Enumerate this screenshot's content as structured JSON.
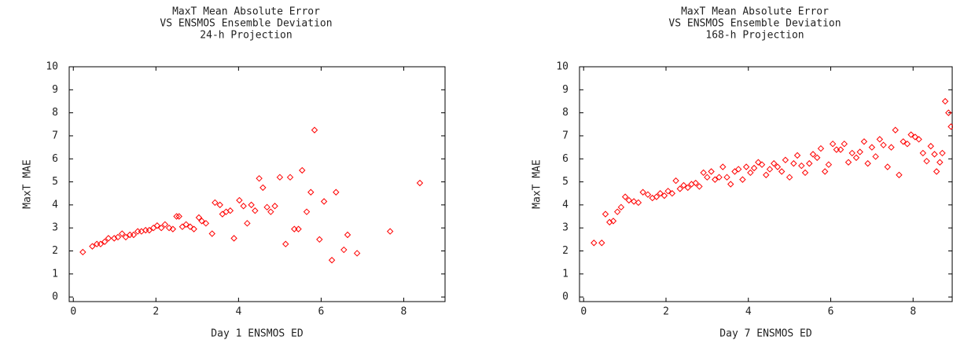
{
  "chart_data": [
    {
      "type": "scatter",
      "title": [
        "MaxT Mean Absolute Error",
        "VS ENSMOS Ensemble Deviation",
        "24-h Projection"
      ],
      "x_label": "Day 1 ENSMOS ED",
      "y_label": "MaxT MAE",
      "xlim": [
        -0.1,
        9
      ],
      "ylim": [
        -0.2,
        10
      ],
      "xticks": [
        0,
        2,
        4,
        6,
        8
      ],
      "yticks": [
        0,
        1,
        2,
        3,
        4,
        5,
        6,
        7,
        8,
        9,
        10
      ],
      "color": "#ff0000",
      "x": [
        0.23,
        0.46,
        0.57,
        0.66,
        0.76,
        0.85,
        0.99,
        1.08,
        1.18,
        1.27,
        1.37,
        1.46,
        1.56,
        1.65,
        1.75,
        1.84,
        1.94,
        2.03,
        2.13,
        2.22,
        2.32,
        2.41,
        2.5,
        2.56,
        2.64,
        2.73,
        2.83,
        2.92,
        3.04,
        3.11,
        3.21,
        3.36,
        3.43,
        3.55,
        3.61,
        3.7,
        3.8,
        3.89,
        4.02,
        4.12,
        4.21,
        4.31,
        4.4,
        4.5,
        4.59,
        4.69,
        4.78,
        4.88,
        5.0,
        5.14,
        5.25,
        5.35,
        5.45,
        5.54,
        5.65,
        5.75,
        5.84,
        5.96,
        6.07,
        6.26,
        6.36,
        6.55,
        6.64,
        6.87,
        7.67,
        8.39
      ],
      "values": [
        1.95,
        2.2,
        2.3,
        2.3,
        2.4,
        2.55,
        2.55,
        2.6,
        2.75,
        2.6,
        2.7,
        2.7,
        2.85,
        2.85,
        2.9,
        2.9,
        3.0,
        3.1,
        3.0,
        3.15,
        3.0,
        2.95,
        3.5,
        3.5,
        3.05,
        3.15,
        3.05,
        2.95,
        3.45,
        3.3,
        3.2,
        2.75,
        4.1,
        4.0,
        3.6,
        3.7,
        3.75,
        2.55,
        4.2,
        3.95,
        3.2,
        4.0,
        3.75,
        5.15,
        4.75,
        3.9,
        3.7,
        3.95,
        5.2,
        2.3,
        5.2,
        2.95,
        2.95,
        5.5,
        3.7,
        4.55,
        7.25,
        2.5,
        4.15,
        1.6,
        4.55,
        2.05,
        2.7,
        1.9,
        2.85,
        4.95
      ]
    },
    {
      "type": "scatter",
      "title": [
        "MaxT Mean Absolute Error",
        "VS ENSMOS Ensemble Deviation",
        "168-h Projection"
      ],
      "x_label": "Day 7 ENSMOS ED",
      "y_label": "MaxT MAE",
      "xlim": [
        -0.1,
        8.95
      ],
      "ylim": [
        -0.2,
        10
      ],
      "xticks": [
        0,
        2,
        4,
        6,
        8
      ],
      "yticks": [
        0,
        1,
        2,
        3,
        4,
        5,
        6,
        7,
        8,
        9,
        10
      ],
      "color": "#ff0000",
      "x": [
        0.25,
        0.44,
        0.53,
        0.63,
        0.72,
        0.82,
        0.91,
        1.01,
        1.1,
        1.22,
        1.33,
        1.44,
        1.56,
        1.67,
        1.77,
        1.86,
        1.96,
        2.05,
        2.15,
        2.24,
        2.34,
        2.43,
        2.53,
        2.62,
        2.72,
        2.81,
        2.91,
        3.0,
        3.1,
        3.19,
        3.29,
        3.38,
        3.48,
        3.57,
        3.67,
        3.76,
        3.86,
        3.95,
        4.05,
        4.14,
        4.24,
        4.33,
        4.43,
        4.52,
        4.62,
        4.71,
        4.81,
        4.9,
        5.0,
        5.1,
        5.19,
        5.29,
        5.38,
        5.48,
        5.57,
        5.67,
        5.76,
        5.86,
        5.95,
        6.05,
        6.14,
        6.24,
        6.33,
        6.43,
        6.52,
        6.62,
        6.71,
        6.81,
        6.9,
        7.0,
        7.09,
        7.19,
        7.28,
        7.38,
        7.47,
        7.57,
        7.66,
        7.76,
        7.86,
        7.95,
        8.05,
        8.14,
        8.24,
        8.33,
        8.43,
        8.52,
        8.57,
        8.65,
        8.71,
        8.78,
        8.86,
        8.92
      ],
      "values": [
        2.35,
        2.35,
        3.6,
        3.25,
        3.3,
        3.7,
        3.9,
        4.35,
        4.2,
        4.15,
        4.1,
        4.55,
        4.45,
        4.3,
        4.35,
        4.5,
        4.4,
        4.6,
        4.5,
        5.05,
        4.7,
        4.85,
        4.75,
        4.9,
        4.95,
        4.8,
        5.4,
        5.2,
        5.45,
        5.1,
        5.2,
        5.65,
        5.2,
        4.9,
        5.45,
        5.55,
        5.1,
        5.65,
        5.4,
        5.6,
        5.85,
        5.75,
        5.3,
        5.55,
        5.8,
        5.65,
        5.45,
        5.95,
        5.2,
        5.8,
        6.15,
        5.7,
        5.4,
        5.8,
        6.2,
        6.05,
        6.45,
        5.45,
        5.75,
        6.65,
        6.4,
        6.4,
        6.65,
        5.85,
        6.25,
        6.05,
        6.3,
        6.75,
        5.8,
        6.5,
        6.1,
        6.85,
        6.6,
        5.65,
        6.5,
        7.25,
        5.3,
        6.75,
        6.65,
        7.05,
        6.95,
        6.85,
        6.25,
        5.9,
        6.55,
        6.2,
        5.45,
        5.85,
        6.25,
        8.5,
        8.0,
        7.4
      ]
    }
  ]
}
